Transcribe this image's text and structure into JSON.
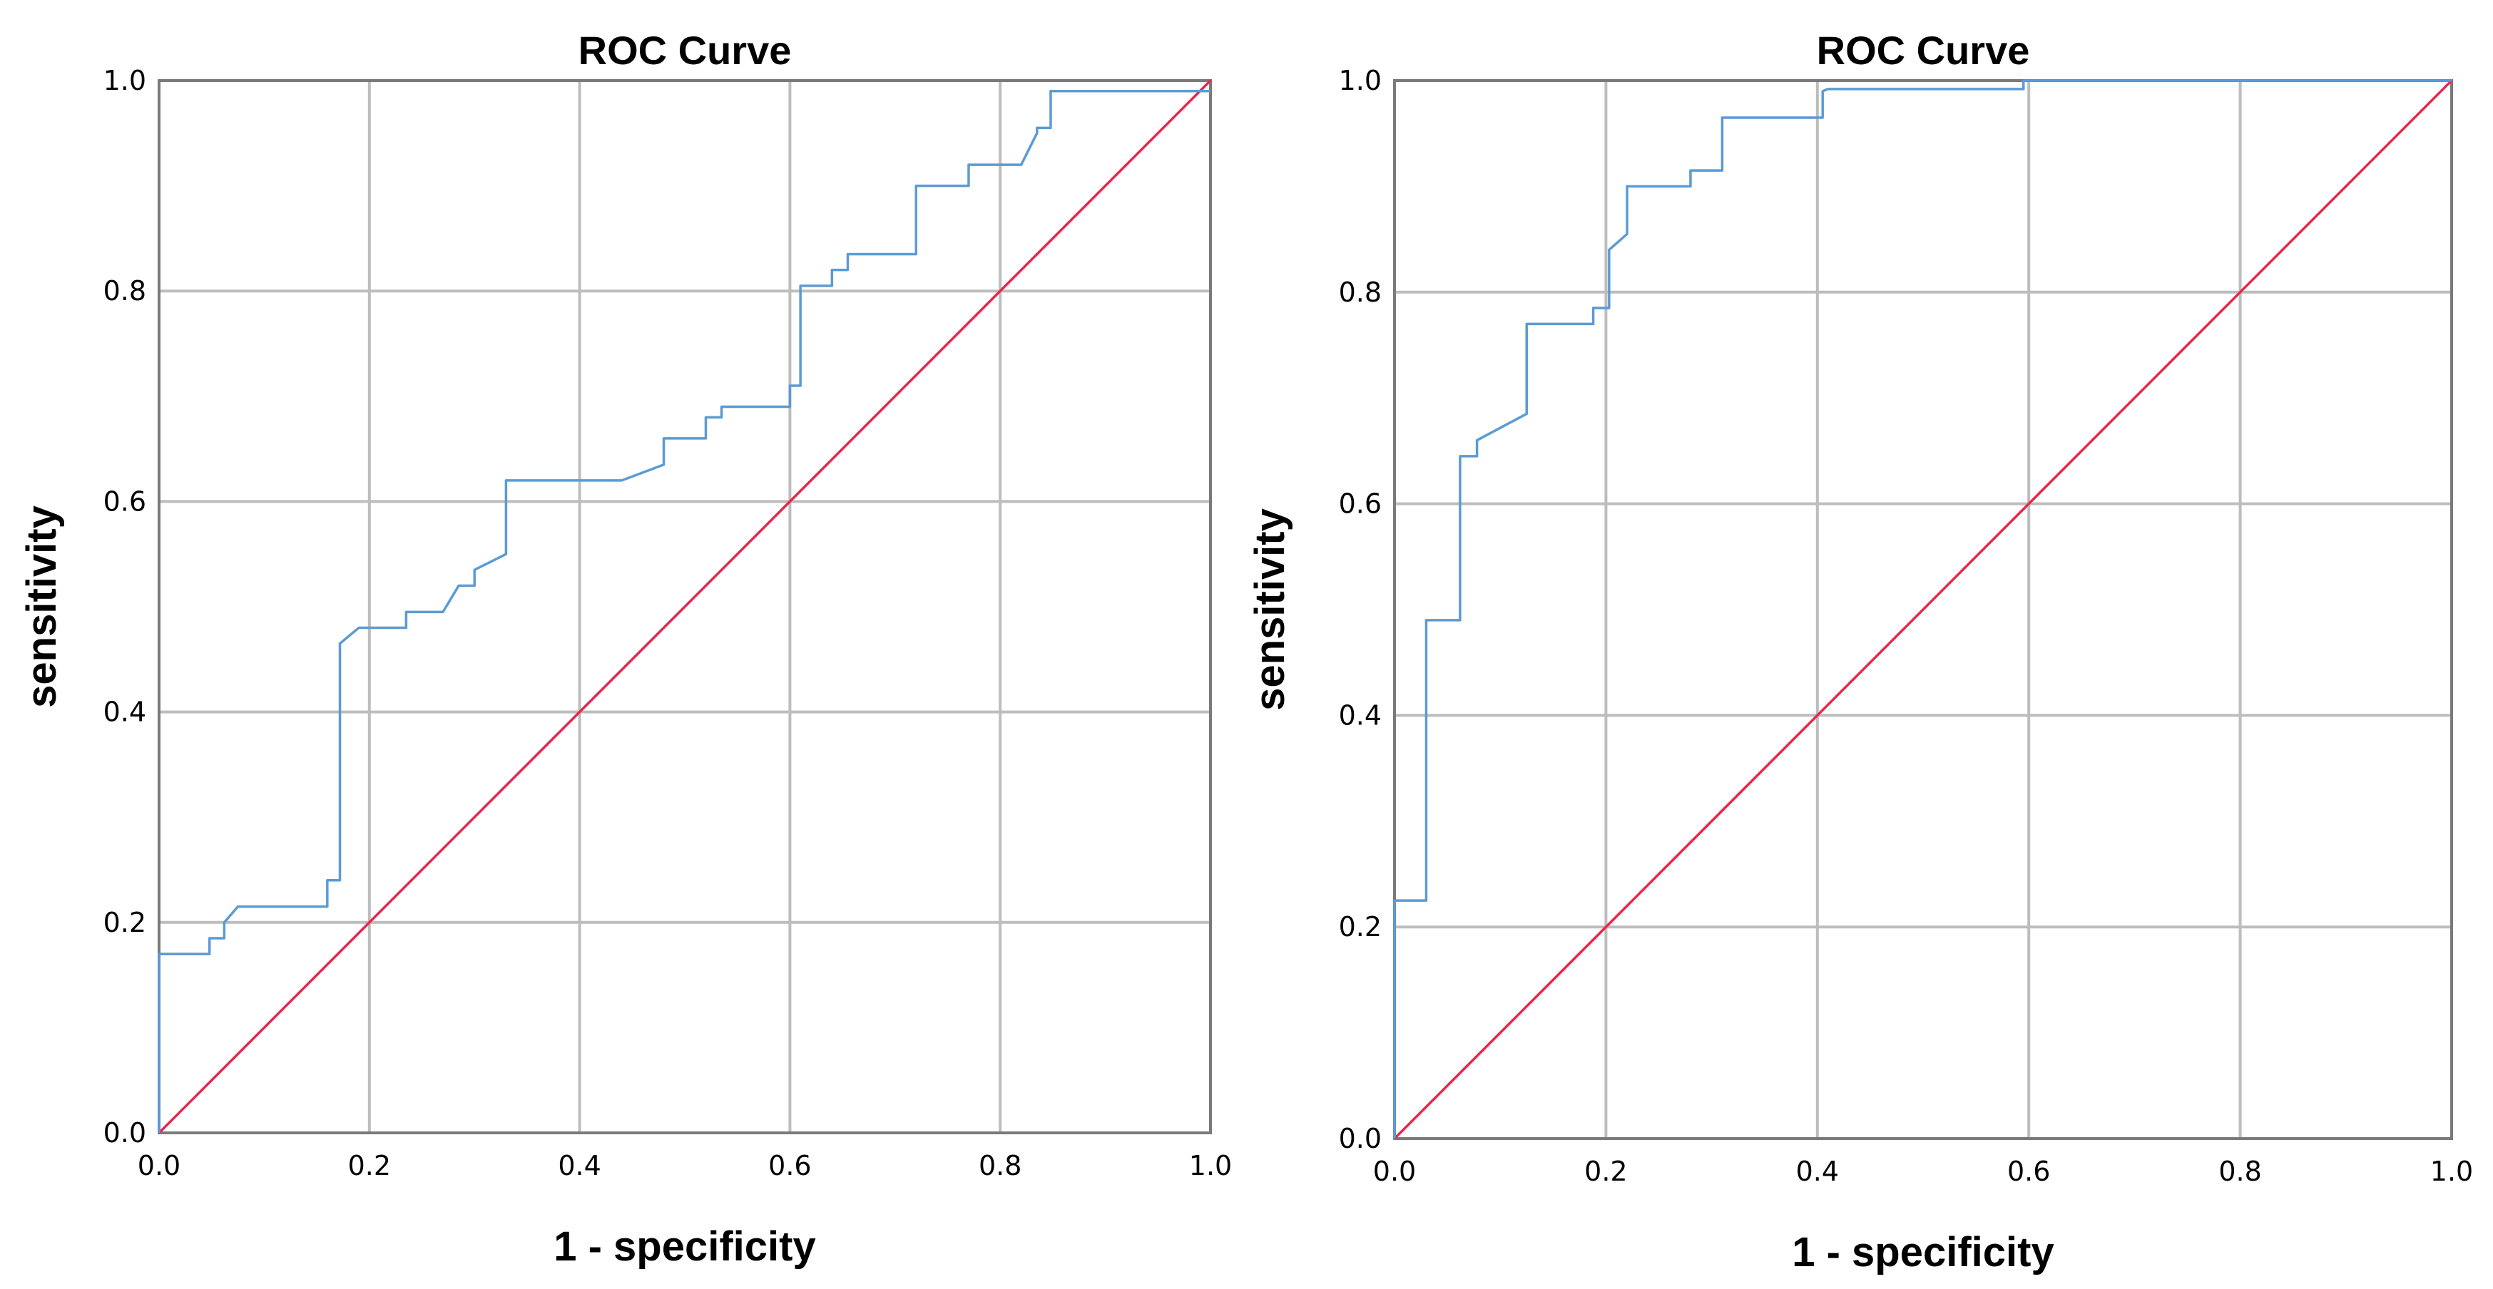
{
  "colors": {
    "roc_curve": "#5b9bd5",
    "reference_line": "#e8264d",
    "grid": "#bdbdbd",
    "frame": "#7a7a7a"
  },
  "chart_data": [
    {
      "type": "line",
      "title": "ROC Curve",
      "xlabel": "1 - specificity",
      "ylabel": "sensitivity",
      "xlim": [
        0,
        1
      ],
      "ylim": [
        0,
        1
      ],
      "xticks": [
        "0.0",
        "0.2",
        "0.4",
        "0.6",
        "0.8",
        "1.0"
      ],
      "yticks": [
        "0.0",
        "0.2",
        "0.4",
        "0.6",
        "0.8",
        "1.0"
      ],
      "grid": true,
      "series": [
        {
          "name": "ROC curve",
          "x": [
            0,
            0,
            0.048,
            0.048,
            0.062,
            0.062,
            0.075,
            0.16,
            0.16,
            0.172,
            0.172,
            0.19,
            0.235,
            0.235,
            0.27,
            0.285,
            0.3,
            0.3,
            0.33,
            0.33,
            0.44,
            0.48,
            0.48,
            0.52,
            0.52,
            0.535,
            0.535,
            0.6,
            0.6,
            0.61,
            0.61,
            0.64,
            0.64,
            0.655,
            0.655,
            0.72,
            0.72,
            0.77,
            0.77,
            0.82,
            0.835,
            0.835,
            0.848,
            0.848,
            1.0
          ],
          "y": [
            0,
            0.17,
            0.17,
            0.185,
            0.185,
            0.2,
            0.215,
            0.215,
            0.24,
            0.24,
            0.465,
            0.48,
            0.48,
            0.495,
            0.495,
            0.52,
            0.52,
            0.535,
            0.55,
            0.62,
            0.62,
            0.635,
            0.66,
            0.66,
            0.68,
            0.68,
            0.69,
            0.69,
            0.71,
            0.71,
            0.805,
            0.805,
            0.82,
            0.82,
            0.835,
            0.835,
            0.9,
            0.9,
            0.92,
            0.92,
            0.95,
            0.955,
            0.955,
            0.99,
            0.99
          ]
        },
        {
          "name": "Reference line",
          "x": [
            0,
            1
          ],
          "y": [
            0,
            1
          ]
        }
      ]
    },
    {
      "type": "line",
      "title": "ROC Curve",
      "xlabel": "1 - specificity",
      "ylabel": "sensitivity",
      "xlim": [
        0,
        1
      ],
      "ylim": [
        0,
        1
      ],
      "xticks": [
        "0.0",
        "0.2",
        "0.4",
        "0.6",
        "0.8",
        "1.0"
      ],
      "yticks": [
        "0.0",
        "0.2",
        "0.4",
        "0.6",
        "0.8",
        "1.0"
      ],
      "grid": true,
      "series": [
        {
          "name": "ROC curve",
          "x": [
            0,
            0,
            0.03,
            0.03,
            0.062,
            0.062,
            0.078,
            0.078,
            0.125,
            0.125,
            0.188,
            0.188,
            0.203,
            0.203,
            0.22,
            0.22,
            0.28,
            0.28,
            0.31,
            0.31,
            0.405,
            0.405,
            0.41,
            0.595,
            0.595,
            1.0
          ],
          "y": [
            0,
            0.225,
            0.225,
            0.49,
            0.49,
            0.645,
            0.645,
            0.66,
            0.685,
            0.77,
            0.77,
            0.785,
            0.785,
            0.84,
            0.855,
            0.9,
            0.9,
            0.915,
            0.915,
            0.965,
            0.965,
            0.99,
            0.992,
            0.992,
            1.0,
            1.0
          ]
        },
        {
          "name": "Reference line",
          "x": [
            0,
            1
          ],
          "y": [
            0,
            1
          ]
        }
      ]
    }
  ]
}
